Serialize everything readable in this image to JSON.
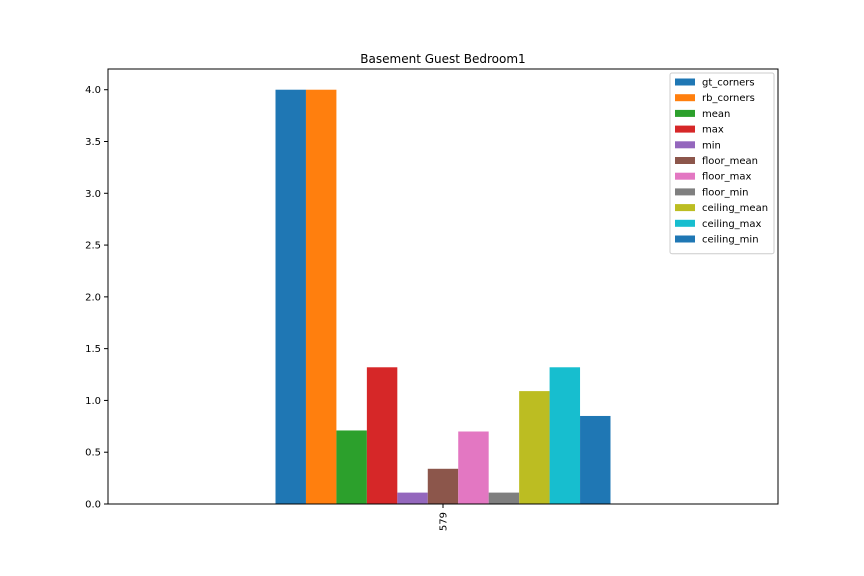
{
  "chart_data": {
    "type": "bar",
    "title": "Basement Guest Bedroom1",
    "xlabel": "",
    "ylabel": "",
    "categories": [
      "579"
    ],
    "ylim": [
      0,
      4.2
    ],
    "yticks": [
      "0.0",
      "0.5",
      "1.0",
      "1.5",
      "2.0",
      "2.5",
      "3.0",
      "3.5",
      "4.0"
    ],
    "grid": false,
    "legend_position": "top-right",
    "series": [
      {
        "name": "gt_corners",
        "values": [
          4.0
        ],
        "color": "#1f77b4"
      },
      {
        "name": "rb_corners",
        "values": [
          4.0
        ],
        "color": "#ff7f0e"
      },
      {
        "name": "mean",
        "values": [
          0.71
        ],
        "color": "#2ca02c"
      },
      {
        "name": "max",
        "values": [
          1.32
        ],
        "color": "#d62728"
      },
      {
        "name": "min",
        "values": [
          0.11
        ],
        "color": "#9467bd"
      },
      {
        "name": "floor_mean",
        "values": [
          0.34
        ],
        "color": "#8c564b"
      },
      {
        "name": "floor_max",
        "values": [
          0.7
        ],
        "color": "#e377c2"
      },
      {
        "name": "floor_min",
        "values": [
          0.11
        ],
        "color": "#7f7f7f"
      },
      {
        "name": "ceiling_mean",
        "values": [
          1.09
        ],
        "color": "#bcbd22"
      },
      {
        "name": "ceiling_max",
        "values": [
          1.32
        ],
        "color": "#17becf"
      },
      {
        "name": "ceiling_min",
        "values": [
          0.85
        ],
        "color": "#1f77b4"
      }
    ]
  }
}
